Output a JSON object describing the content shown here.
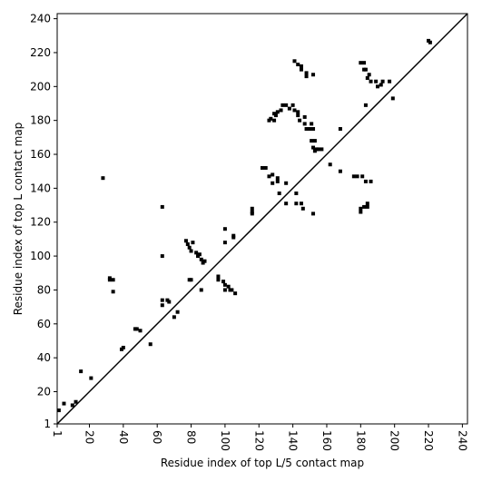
{
  "chart_data": {
    "type": "scatter",
    "xlabel": "Residue index of top L/5 contact map",
    "ylabel": "Residue index of top L contact map",
    "x": [
      2,
      5,
      10,
      12,
      15,
      21,
      28,
      32,
      32,
      34,
      34,
      39,
      40,
      47,
      48,
      50,
      56,
      63,
      63,
      63,
      63,
      66,
      67,
      70,
      72,
      77,
      78,
      79,
      80,
      81,
      83,
      84,
      85,
      86,
      87,
      88,
      79,
      80,
      86,
      96,
      96,
      99,
      100,
      100,
      102,
      103,
      104,
      106,
      100,
      100,
      105,
      105,
      116,
      116,
      116,
      122,
      124,
      126,
      128,
      128,
      131,
      131,
      132,
      136,
      136,
      142,
      142,
      145,
      146,
      152,
      126,
      127,
      129,
      129,
      130,
      131,
      133,
      134,
      136,
      138,
      140,
      141,
      143,
      143,
      144,
      147,
      147,
      148,
      150,
      152,
      151,
      151,
      153,
      152,
      154,
      153,
      155,
      157,
      141,
      143,
      145,
      145,
      148,
      148,
      152,
      162,
      168,
      168,
      180,
      182,
      182,
      183,
      184,
      185,
      186,
      189,
      190,
      192,
      193,
      197,
      199,
      180,
      180,
      182,
      184,
      184,
      183,
      186,
      181,
      176,
      178,
      183,
      220,
      221
    ],
    "values": [
      9,
      13,
      12,
      14,
      32,
      28,
      146,
      87,
      86,
      79,
      86,
      45,
      46,
      57,
      57,
      56,
      48,
      129,
      100,
      74,
      71,
      74,
      73,
      64,
      67,
      109,
      107,
      105,
      103,
      108,
      102,
      100,
      101,
      98,
      96,
      97,
      86,
      86,
      80,
      88,
      86,
      85,
      83,
      80,
      82,
      80,
      80,
      78,
      108,
      116,
      111,
      112,
      128,
      125,
      126,
      152,
      152,
      147,
      148,
      143,
      146,
      144,
      137,
      143,
      131,
      137,
      131,
      131,
      128,
      125,
      180,
      181,
      184,
      180,
      183,
      185,
      186,
      189,
      189,
      187,
      189,
      186,
      185,
      183,
      180,
      182,
      178,
      175,
      175,
      175,
      178,
      168,
      168,
      164,
      163,
      162,
      163,
      163,
      215,
      213,
      212,
      210,
      208,
      206,
      207,
      154,
      150,
      175,
      214,
      214,
      210,
      210,
      205,
      207,
      203,
      203,
      200,
      201,
      203,
      203,
      193,
      128,
      126,
      129,
      131,
      129,
      144,
      144,
      147,
      147,
      147,
      189,
      227,
      226
    ],
    "color": "#000000",
    "diagonal": true,
    "xlim": [
      1,
      243
    ],
    "ylim": [
      1,
      243
    ],
    "xticks": [
      1,
      20,
      40,
      60,
      80,
      100,
      120,
      140,
      160,
      180,
      200,
      220,
      240
    ],
    "yticks": [
      1,
      20,
      40,
      60,
      80,
      100,
      120,
      140,
      160,
      180,
      200,
      220,
      240
    ]
  }
}
